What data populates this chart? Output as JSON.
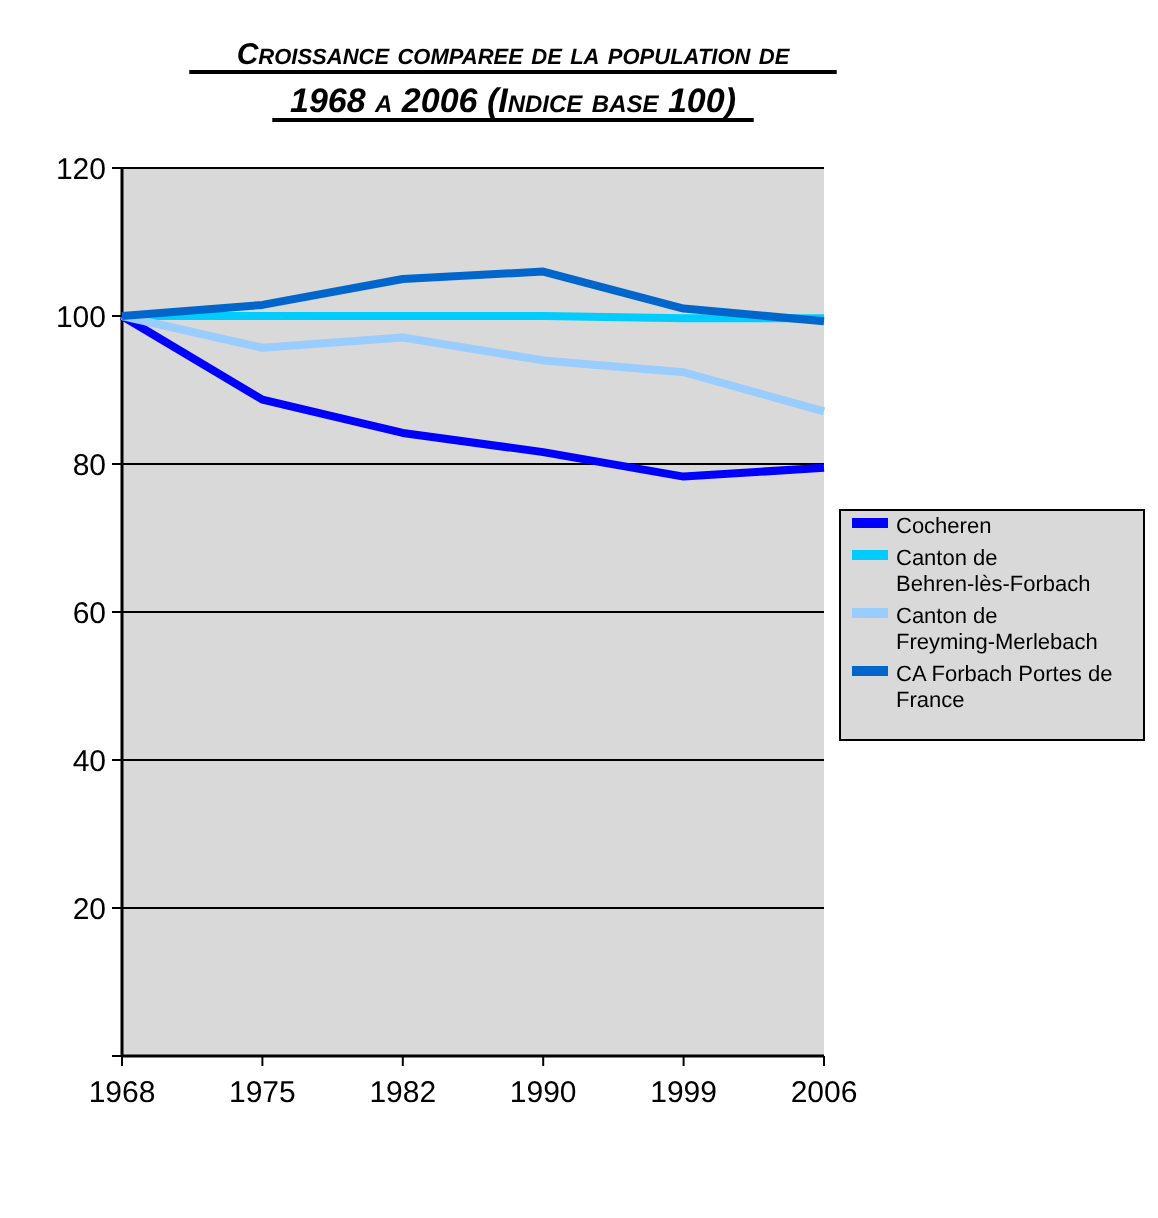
{
  "chart_data": {
    "type": "line",
    "title": "Croissance comparee de la population de 1968 a 2006 (Indice base 100)",
    "categories": [
      "1968",
      "1975",
      "1982",
      "1990",
      "1999",
      "2006"
    ],
    "series": [
      {
        "name": "Cocheren",
        "color": "#0000ff",
        "values": [
          100,
          88.7,
          84.2,
          81.6,
          78.3,
          79.5
        ]
      },
      {
        "name": "Canton de Behren-lès-Forbach",
        "color": "#00ccff",
        "values": [
          100,
          100,
          100,
          100,
          99.7,
          99.7
        ]
      },
      {
        "name": "Canton de Freyming-Merlebach",
        "color": "#99ccff",
        "values": [
          100,
          95.7,
          97.1,
          94,
          92.4,
          87.1
        ]
      },
      {
        "name": "CA Forbach Portes de France",
        "color": "#0066cc",
        "values": [
          100,
          101.5,
          105,
          106,
          101,
          99.3
        ]
      }
    ],
    "ylim": [
      0,
      120
    ],
    "yticks": [
      {
        "value": 0,
        "label": null
      },
      20,
      40,
      60,
      80,
      100,
      120
    ],
    "grid": "y",
    "legend": "right",
    "marker": "none",
    "line_style": "solid"
  }
}
